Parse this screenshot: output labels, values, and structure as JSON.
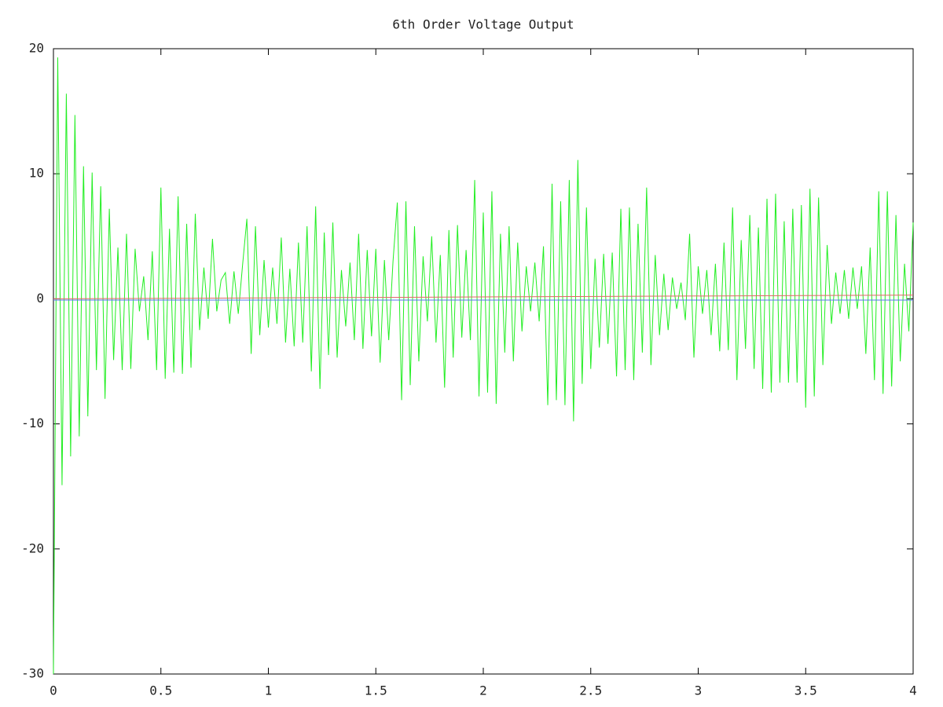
{
  "chart_data": {
    "type": "line",
    "title": "6th Order Voltage Output",
    "xlim": [
      0,
      4
    ],
    "xticks": [
      0,
      0.5,
      1,
      1.5,
      2,
      2.5,
      3,
      3.5,
      4
    ],
    "ylim": [
      -30,
      20
    ],
    "yticks": [
      -30,
      -20,
      -10,
      0,
      10,
      20
    ],
    "series": [
      {
        "color": "#22ee22",
        "x": [
          0,
          0.02,
          0.04,
          0.06,
          0.08,
          0.1,
          0.12,
          0.14,
          0.16,
          0.18,
          0.2,
          0.22,
          0.24,
          0.26,
          0.28,
          0.3,
          0.32,
          0.34,
          0.36,
          0.38,
          0.4,
          0.42,
          0.44,
          0.46,
          0.48,
          0.5,
          0.52,
          0.54,
          0.56,
          0.58,
          0.6,
          0.62,
          0.64,
          0.66,
          0.68,
          0.7,
          0.72,
          0.74,
          0.76,
          0.78,
          0.8,
          0.82,
          0.84,
          0.86,
          0.88,
          0.9,
          0.92,
          0.94,
          0.96,
          0.98,
          1,
          1.02,
          1.04,
          1.06,
          1.08,
          1.1,
          1.12,
          1.14,
          1.16,
          1.18,
          1.2,
          1.22,
          1.24,
          1.26,
          1.28,
          1.3,
          1.32,
          1.34,
          1.36,
          1.38,
          1.4,
          1.42,
          1.44,
          1.46,
          1.48,
          1.5,
          1.52,
          1.54,
          1.56,
          1.58,
          1.6,
          1.62,
          1.64,
          1.66,
          1.68,
          1.7,
          1.72,
          1.74,
          1.76,
          1.78,
          1.8,
          1.82,
          1.84,
          1.86,
          1.88,
          1.9,
          1.92,
          1.94,
          1.96,
          1.98,
          2,
          2.02,
          2.04,
          2.06,
          2.08,
          2.1,
          2.12,
          2.14,
          2.16,
          2.18,
          2.2,
          2.22,
          2.24,
          2.26,
          2.28,
          2.3,
          2.32,
          2.34,
          2.36,
          2.38,
          2.4,
          2.42,
          2.44,
          2.46,
          2.48,
          2.5,
          2.52,
          2.54,
          2.56,
          2.58,
          2.6,
          2.62,
          2.64,
          2.66,
          2.68,
          2.7,
          2.72,
          2.74,
          2.76,
          2.78,
          2.8,
          2.82,
          2.84,
          2.86,
          2.88,
          2.9,
          2.92,
          2.94,
          2.96,
          2.98,
          3,
          3.02,
          3.04,
          3.06,
          3.08,
          3.1,
          3.12,
          3.14,
          3.16,
          3.18,
          3.2,
          3.22,
          3.24,
          3.26,
          3.28,
          3.3,
          3.32,
          3.34,
          3.36,
          3.38,
          3.4,
          3.42,
          3.44,
          3.46,
          3.48,
          3.5,
          3.52,
          3.54,
          3.56,
          3.58,
          3.6,
          3.62,
          3.64,
          3.66,
          3.68,
          3.7,
          3.72,
          3.74,
          3.76,
          3.78,
          3.8,
          3.82,
          3.84,
          3.86,
          3.88,
          3.9,
          3.92,
          3.94,
          3.96,
          3.98,
          4
        ],
        "values": [
          -30,
          19.3,
          -14.9,
          16.4,
          -12.6,
          14.7,
          -11,
          10.6,
          -9.4,
          10.1,
          -5.7,
          9,
          -8,
          7.2,
          -4.9,
          4.1,
          -5.7,
          5.2,
          -5.6,
          4,
          -1,
          1.8,
          -3.3,
          3.8,
          -5.7,
          8.9,
          -6.4,
          5.6,
          -5.9,
          8.2,
          -6,
          6,
          -5.5,
          6.8,
          -2.5,
          2.5,
          -1.6,
          4.8,
          -1,
          1.5,
          2.1,
          -2,
          2.2,
          -1.2,
          2.7,
          6.4,
          -4.4,
          5.8,
          -2.9,
          3.1,
          -2.3,
          2.5,
          -2,
          4.9,
          -3.5,
          2.4,
          -3.8,
          4.5,
          -3.5,
          5.8,
          -5.8,
          7.4,
          -7.2,
          5.3,
          -4.5,
          6.1,
          -4.7,
          2.3,
          -2.2,
          2.9,
          -3.3,
          5.2,
          -4,
          3.9,
          -3,
          4,
          -5.1,
          3.1,
          -3.3,
          3,
          7.7,
          -8.1,
          7.8,
          -6.9,
          5.8,
          -5,
          3.4,
          -1.8,
          5,
          -3.5,
          3.5,
          -7.1,
          5.5,
          -4.7,
          5.9,
          -3.1,
          3.9,
          -3.3,
          9.5,
          -7.8,
          6.9,
          -7.5,
          8.6,
          -8.4,
          5.2,
          -4.3,
          5.8,
          -5,
          4.5,
          -2.6,
          2.6,
          -1,
          2.9,
          -1.8,
          4.2,
          -8.5,
          9.2,
          -8.1,
          7.8,
          -8.5,
          9.5,
          -9.8,
          11.1,
          -6.8,
          7.3,
          -5.6,
          3.2,
          -3.9,
          3.6,
          -3.6,
          3.7,
          -6.2,
          7.2,
          -5.7,
          7.3,
          -6.5,
          6,
          -4.3,
          8.9,
          -5.3,
          3.5,
          -2.9,
          2,
          -2.5,
          1.7,
          -0.8,
          1.3,
          -1.7,
          5.2,
          -4.7,
          2.6,
          -1.2,
          2.3,
          -2.9,
          2.8,
          -4.2,
          4.5,
          -4.1,
          7.3,
          -6.5,
          4.7,
          -4,
          6.7,
          -5.6,
          5.7,
          -7.2,
          8,
          -7.5,
          8.4,
          -6.7,
          6.2,
          -6.7,
          7.2,
          -6.7,
          7.5,
          -8.7,
          8.8,
          -7.8,
          8.1,
          -5.3,
          4.3,
          -2,
          2.1,
          -1.2,
          2.3,
          -1.6,
          2.5,
          -0.8,
          2.6,
          -4.4,
          4.1,
          -6.5,
          8.6,
          -7.6,
          8.6,
          -7,
          6.7,
          -5,
          2.8,
          -2.6,
          6.1
        ]
      },
      {
        "color": "#e06666",
        "x": [
          0,
          4
        ],
        "values": [
          0,
          0.3
        ]
      },
      {
        "color": "#5577ee",
        "x": [
          0,
          4
        ],
        "values": [
          -0.1,
          -0.1
        ]
      }
    ]
  }
}
